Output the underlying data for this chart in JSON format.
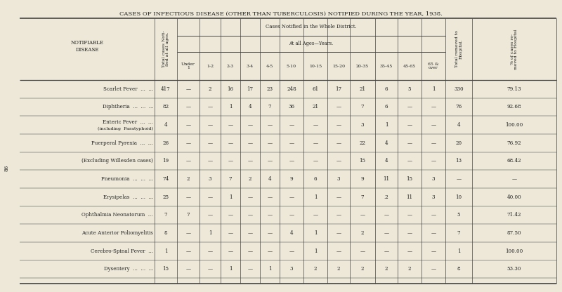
{
  "title": "CASES OF INFECTIOUS DISEASE (OTHER THAN TUBERCULOSIS) NOTIFIED DURING THE YEAR, 1938.",
  "bg_color": "#ede8d8",
  "text_color": "#222222",
  "page_number": "86",
  "age_labels": [
    "Under\n1",
    "1-2",
    "2-3",
    "3-4",
    "4-5",
    "5-10",
    "10-15",
    "15-20",
    "20-35",
    "35-45",
    "45-65",
    "65 &\nover"
  ],
  "rows": [
    {
      "disease": [
        "Scarlet Fever",
        "...",
        "..."
      ],
      "total": "417",
      "ages": [
        "—",
        "2",
        "16",
        "17",
        "23",
        "248",
        "61",
        "17",
        "21",
        "6",
        "5",
        "1"
      ],
      "hosp_total": "330",
      "hosp_pct": "79.13"
    },
    {
      "disease": [
        "Diphtheria",
        "...",
        "...",
        "..."
      ],
      "total": "82",
      "ages": [
        "—",
        "—",
        "1",
        "4",
        "7",
        "36",
        "21",
        "—",
        "7",
        "6",
        "—",
        "—"
      ],
      "hosp_total": "76",
      "hosp_pct": "92.68"
    },
    {
      "disease": [
        "Enteric Fever",
        "...",
        "...",
        "\n(including  Paratyphoid)"
      ],
      "total": "4",
      "ages": [
        "—",
        "—",
        "—",
        "—",
        "—",
        "—",
        "—",
        "—",
        "3",
        "1",
        "—",
        "—"
      ],
      "hosp_total": "4",
      "hosp_pct": "100.00"
    },
    {
      "disease": [
        "Puerperal Pyrexia",
        "...",
        "..."
      ],
      "total": "26",
      "ages": [
        "—",
        "—",
        "—",
        "—",
        "—",
        "—",
        "—",
        "—",
        "22",
        "4",
        "—",
        "—"
      ],
      "hosp_total": "20",
      "hosp_pct": "76.92"
    },
    {
      "disease": [
        "(Excluding Willesden cases)"
      ],
      "total": "19",
      "ages": [
        "—",
        "—",
        "—",
        "—",
        "—",
        "—",
        "—",
        "—",
        "15",
        "4",
        "—",
        "—"
      ],
      "hosp_total": "13",
      "hosp_pct": "68.42"
    },
    {
      "disease": [
        "Pneumonia",
        "...",
        "...",
        "..."
      ],
      "total": "74",
      "ages": [
        "2",
        "3",
        "7",
        "2",
        "4",
        "9",
        "6",
        "3",
        "9",
        "11",
        "15",
        "3"
      ],
      "hosp_total": "—",
      "hosp_pct": "—"
    },
    {
      "disease": [
        "Erysipelas",
        "...",
        "...",
        "..."
      ],
      "total": "25",
      "ages": [
        "—",
        "—",
        "1",
        "—",
        "—",
        "—",
        "1",
        "—",
        "7",
        ".2",
        "11",
        "3"
      ],
      "hosp_total": "10",
      "hosp_pct": "40.00"
    },
    {
      "disease": [
        "Ophthalmia Neonatorum",
        "..."
      ],
      "total": "7",
      "ages": [
        "7",
        "—",
        "—",
        "—",
        "—",
        "—",
        "—",
        "—",
        "—",
        "—",
        "—",
        "—"
      ],
      "hosp_total": "5",
      "hosp_pct": "71.42"
    },
    {
      "disease": [
        "Acute Anterior Poliomyelitis"
      ],
      "total": "8",
      "ages": [
        "—",
        "1",
        "—",
        "—",
        "—",
        "4",
        "1",
        "—",
        "2",
        "—",
        "—",
        "—"
      ],
      "hosp_total": "7",
      "hosp_pct": "87.50"
    },
    {
      "disease": [
        "Cerebro-Spinal Fever",
        "..."
      ],
      "total": "1",
      "ages": [
        "—",
        "—",
        "—",
        "—",
        "—",
        "—",
        "1",
        "—",
        "—",
        "—",
        "—",
        "—"
      ],
      "hosp_total": "1",
      "hosp_pct": "100.00"
    },
    {
      "disease": [
        "Dysentery",
        "...",
        "...",
        "..."
      ],
      "total": "15",
      "ages": [
        "—",
        "—",
        "1",
        "—",
        "1",
        "3",
        "2",
        "2",
        "2",
        "2",
        "2",
        "—"
      ],
      "hosp_total": "8",
      "hosp_pct": "53.30"
    }
  ]
}
